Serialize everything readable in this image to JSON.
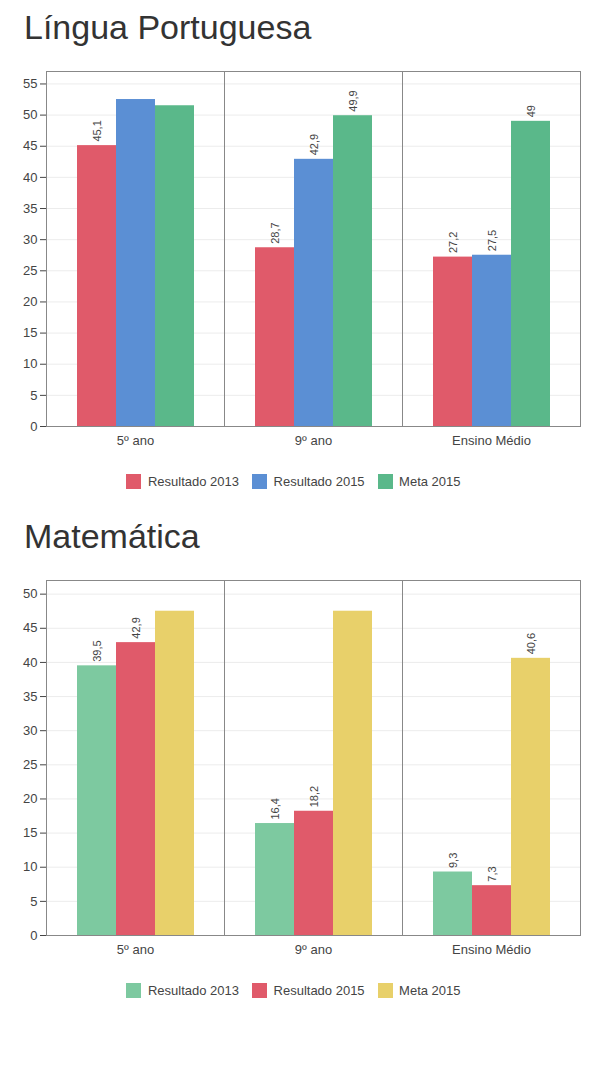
{
  "chart_data": [
    {
      "type": "bar",
      "title": "Língua Portuguesa",
      "categories": [
        "5º ano",
        "9º ano",
        "Ensino Médio"
      ],
      "series": [
        {
          "name": "Resultado 2013",
          "color": "#e05a6a",
          "values": [
            45.1,
            28.7,
            27.2
          ],
          "value_labels": [
            "45,1",
            "28,7",
            "27,2"
          ]
        },
        {
          "name": "Resultado 2015",
          "color": "#5b8fd4",
          "values": [
            52.5,
            42.9,
            27.5
          ],
          "value_labels": [
            null,
            "42,9",
            "27,5"
          ]
        },
        {
          "name": "Meta 2015",
          "color": "#5ab88a",
          "values": [
            51.5,
            49.9,
            49.0
          ],
          "value_labels": [
            null,
            "49,9",
            "49"
          ]
        }
      ],
      "ylim": [
        0,
        57
      ],
      "yticks": [
        0,
        5,
        10,
        15,
        20,
        25,
        30,
        35,
        40,
        45,
        50,
        55
      ],
      "grid": true,
      "legend": "bottom",
      "data_labels": true
    },
    {
      "type": "bar",
      "title": "Matemática",
      "categories": [
        "5º ano",
        "9º ano",
        "Ensino Médio"
      ],
      "series": [
        {
          "name": "Resultado 2013",
          "color": "#7dc9a0",
          "values": [
            39.5,
            16.4,
            9.3
          ],
          "value_labels": [
            "39,5",
            "16,4",
            "9,3"
          ]
        },
        {
          "name": "Resultado 2015",
          "color": "#e05a6a",
          "values": [
            42.9,
            18.2,
            7.3
          ],
          "value_labels": [
            "42,9",
            "18,2",
            "7,3"
          ]
        },
        {
          "name": "Meta 2015",
          "color": "#e8d06a",
          "values": [
            47.5,
            47.5,
            40.6
          ],
          "value_labels": [
            null,
            null,
            "40,6"
          ]
        }
      ],
      "ylim": [
        0,
        52
      ],
      "yticks": [
        0,
        5,
        10,
        15,
        20,
        25,
        30,
        35,
        40,
        45,
        50
      ],
      "grid": true,
      "legend": "bottom",
      "data_labels": true
    }
  ]
}
